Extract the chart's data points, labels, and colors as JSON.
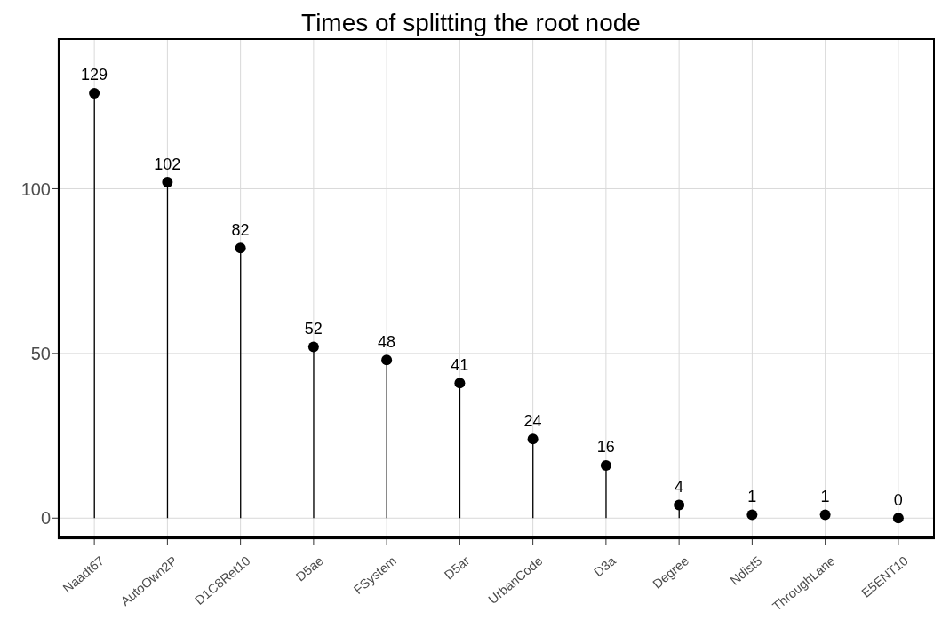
{
  "chart_data": {
    "type": "lollipop",
    "title": "Times of splitting the root node",
    "categories": [
      "Naadt67",
      "AutoOwn2P",
      "D1C8Ret10",
      "D5ae",
      "FSystem",
      "D5ar",
      "UrbanCode",
      "D3a",
      "Degree",
      "Ndist5",
      "ThroughLane",
      "E5ENT10"
    ],
    "values": [
      129,
      102,
      82,
      52,
      48,
      41,
      24,
      16,
      4,
      1,
      1,
      0
    ],
    "color": "#000000",
    "ylim": [
      -6.4,
      145.7
    ],
    "yticks": [
      0,
      50,
      100
    ],
    "grid": true,
    "data_labels": true,
    "marker": "circle"
  }
}
